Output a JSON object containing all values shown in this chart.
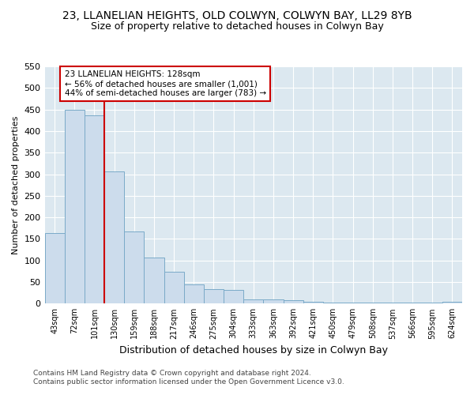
{
  "title_line1": "23, LLANELIAN HEIGHTS, OLD COLWYN, COLWYN BAY, LL29 8YB",
  "title_line2": "Size of property relative to detached houses in Colwyn Bay",
  "xlabel": "Distribution of detached houses by size in Colwyn Bay",
  "ylabel": "Number of detached properties",
  "footer_line1": "Contains HM Land Registry data © Crown copyright and database right 2024.",
  "footer_line2": "Contains public sector information licensed under the Open Government Licence v3.0.",
  "categories": [
    "43sqm",
    "72sqm",
    "101sqm",
    "130sqm",
    "159sqm",
    "188sqm",
    "217sqm",
    "246sqm",
    "275sqm",
    "304sqm",
    "333sqm",
    "363sqm",
    "392sqm",
    "421sqm",
    "450sqm",
    "479sqm",
    "508sqm",
    "537sqm",
    "566sqm",
    "595sqm",
    "624sqm"
  ],
  "values": [
    163,
    450,
    437,
    307,
    167,
    107,
    74,
    45,
    33,
    32,
    10,
    10,
    8,
    5,
    2,
    2,
    2,
    2,
    2,
    2,
    5
  ],
  "bar_color": "#ccdcec",
  "bar_edge_color": "#7aaac8",
  "vline_color": "#cc0000",
  "annotation_title": "23 LLANELIAN HEIGHTS: 128sqm",
  "annotation_line2": "← 56% of detached houses are smaller (1,001)",
  "annotation_line3": "44% of semi-detached houses are larger (783) →",
  "annotation_box_color": "#cc0000",
  "ylim": [
    0,
    550
  ],
  "yticks": [
    0,
    50,
    100,
    150,
    200,
    250,
    300,
    350,
    400,
    450,
    500,
    550
  ],
  "background_color": "#ffffff",
  "plot_background_color": "#dce8f0",
  "grid_color": "#ffffff",
  "title_fontsize": 10,
  "subtitle_fontsize": 9,
  "vline_bar_index": 3
}
